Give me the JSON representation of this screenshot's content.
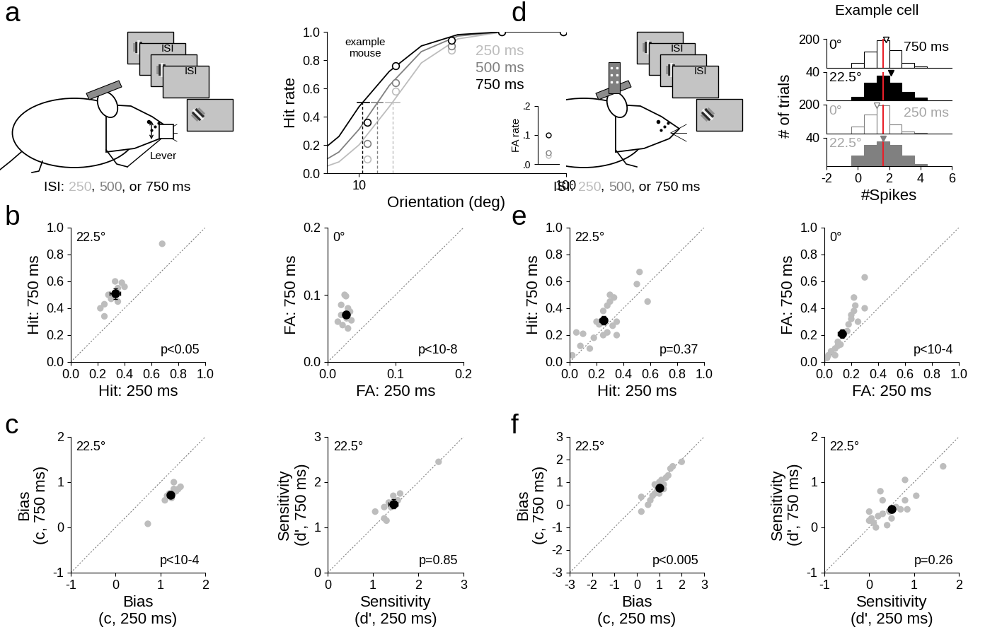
{
  "panel_letters": [
    "a",
    "b",
    "c",
    "d",
    "e",
    "f"
  ],
  "schematics": [
    {
      "isi_labels": [
        "ISI",
        "ISI"
      ],
      "caption": [
        {
          "text": "ISI: ",
          "color": "black"
        },
        {
          "text": "250",
          "color": "#bdbdbd"
        },
        {
          "text": ", ",
          "color": "black"
        },
        {
          "text": "500",
          "color": "#808080"
        },
        {
          "text": ", or ",
          "color": "black"
        },
        {
          "text": "750",
          "color": "black"
        },
        {
          "text": " ms",
          "color": "black"
        }
      ],
      "device_label": "Lever"
    },
    {
      "isi_labels": [
        "ISI",
        "ISI"
      ],
      "caption": [
        {
          "text": "ISI: ",
          "color": "black"
        },
        {
          "text": "250",
          "color": "#bdbdbd"
        },
        {
          "text": ", ",
          "color": "black"
        },
        {
          "text": "500",
          "color": "#808080"
        },
        {
          "text": ", or ",
          "color": "black"
        },
        {
          "text": "750",
          "color": "black"
        },
        {
          "text": " ms",
          "color": "black"
        }
      ]
    }
  ],
  "chart_data": [
    {
      "type": "line",
      "log": "x",
      "x_label": "Orientation (deg)",
      "y_label": "Hit rate",
      "annotation": "example\nmouse",
      "xlim": [
        7,
        100
      ],
      "xticks": [
        10,
        100
      ],
      "ylim": [
        0,
        1
      ],
      "yticks": [
        {
          "value": 0,
          "label": "0.0"
        },
        0.2,
        0.4,
        0.6,
        0.8,
        {
          "value": 1,
          "label": "1.0"
        }
      ],
      "threshold_level": 0.5,
      "series": [
        {
          "name": "250 ms",
          "color": "#bdbdbd",
          "marker": "o",
          "x": [
            11,
            15,
            28,
            49,
            97
          ],
          "values": [
            0.1,
            0.58,
            0.87,
            1.0,
            1.0
          ],
          "fit_x": [
            7,
            8,
            10,
            14,
            20,
            30,
            50,
            100
          ],
          "fit_values": [
            0.05,
            0.08,
            0.2,
            0.47,
            0.78,
            0.95,
            1.0,
            1.0
          ],
          "threshold": 14.5,
          "threshold_ci": [
            13.5,
            15.8
          ]
        },
        {
          "name": "500 ms",
          "color": "#808080",
          "marker": "o",
          "x": [
            11,
            15,
            28,
            49,
            97
          ],
          "values": [
            0.21,
            0.64,
            0.9,
            1.0,
            1.0
          ],
          "fit_x": [
            7,
            8,
            10,
            14,
            20,
            30,
            50,
            100
          ],
          "fit_values": [
            0.1,
            0.15,
            0.31,
            0.62,
            0.86,
            0.97,
            1.0,
            1.0
          ],
          "threshold": 12.2,
          "threshold_ci": [
            11.5,
            13.0
          ]
        },
        {
          "name": "750 ms",
          "color": "#000000",
          "marker": "o",
          "x": [
            11,
            15,
            28,
            49,
            97
          ],
          "values": [
            0.36,
            0.76,
            0.94,
            1.0,
            1.0
          ],
          "fit_x": [
            7,
            8,
            10,
            14,
            20,
            30,
            50,
            100
          ],
          "fit_values": [
            0.19,
            0.26,
            0.47,
            0.72,
            0.9,
            0.98,
            1.0,
            1.0
          ],
          "threshold": 10.4,
          "threshold_ci": [
            9.8,
            11.2
          ]
        }
      ],
      "inset": {
        "y_label": "FA rate",
        "ylim": [
          0,
          0.2
        ],
        "yticks": [
          {
            "value": 0,
            "label": ".0"
          },
          {
            "value": 0.1,
            "label": ".1"
          },
          {
            "value": 0.2,
            "label": ".2"
          }
        ],
        "values": [
          0.03,
          0.04,
          0.1
        ]
      }
    },
    {
      "type": "histogram",
      "title": "Example cell",
      "x_label": "#Spikes",
      "y_label": "# of trials",
      "xlim": [
        -2,
        6
      ],
      "xticks": [
        -2,
        0,
        2,
        4,
        6
      ],
      "criterion": 1.6,
      "criterion_color": "#e8202a",
      "panels": [
        {
          "label": "0°",
          "duration": "750 ms",
          "label_color": "#000000",
          "ylim": [
            0,
            200
          ],
          "yticks": [
            200
          ],
          "bins": [
            -0.4,
            0.4,
            1.2,
            2.0,
            2.8,
            3.6,
            4.4
          ],
          "counts": [
            30,
            110,
            190,
            120,
            30,
            5
          ],
          "color": "#ffffff",
          "edge_color": "#000000",
          "mean": 1.8,
          "mean_filled": false
        },
        {
          "label": "22.5°",
          "label_color": "#000000",
          "ylim": [
            0,
            40
          ],
          "yticks": [
            40
          ],
          "bins": [
            -0.4,
            0.4,
            1.2,
            2.0,
            2.8,
            3.6,
            4.4
          ],
          "counts": [
            5,
            25,
            35,
            25,
            12,
            4
          ],
          "color": "#000000",
          "edge_color": "#000000",
          "mean": 2.1,
          "mean_filled": true
        },
        {
          "label": "0°",
          "duration": "250 ms",
          "label_color": "#a6a6a6",
          "ylim": [
            0,
            200
          ],
          "yticks": [
            200
          ],
          "bins": [
            -0.4,
            0.4,
            1.2,
            2.0,
            2.8,
            3.6,
            4.4
          ],
          "counts": [
            45,
            130,
            195,
            60,
            10,
            2
          ],
          "color": "#ffffff",
          "edge_color": "#808080",
          "mean": 1.2,
          "mean_filled": false
        },
        {
          "label": "22.5°",
          "label_color": "#a6a6a6",
          "ylim": [
            0,
            40
          ],
          "yticks": [
            40
          ],
          "bins": [
            -0.4,
            0.4,
            1.2,
            2.0,
            2.8,
            3.6,
            4.4
          ],
          "counts": [
            15,
            30,
            35,
            30,
            15,
            3
          ],
          "color": "#808080",
          "edge_color": "#808080",
          "mean": 1.6,
          "mean_filled": true
        }
      ]
    },
    {
      "type": "scatter",
      "condition": "22.5°",
      "p_value": "p<0.05",
      "x_label": "Hit: 250 ms",
      "y_label": "Hit: 750 ms",
      "xlim": [
        0,
        1
      ],
      "ylim": [
        0,
        1
      ],
      "xticks": [
        {
          "value": 0,
          "label": "0.0"
        },
        0.2,
        0.4,
        0.6,
        0.8,
        {
          "value": 1,
          "label": "1.0"
        }
      ],
      "yticks": [
        {
          "value": 0,
          "label": "0.0"
        },
        0.2,
        0.4,
        0.6,
        0.8,
        {
          "value": 1,
          "label": "1.0"
        }
      ],
      "color": "#bdbdbd",
      "points": {
        "x": [
          0.68,
          0.35,
          0.38,
          0.33,
          0.22,
          0.25,
          0.3,
          0.28,
          0.25,
          0.32,
          0.35,
          0.4
        ],
        "y": [
          0.88,
          0.55,
          0.59,
          0.6,
          0.4,
          0.43,
          0.47,
          0.5,
          0.34,
          0.5,
          0.45,
          0.56
        ]
      },
      "mean": {
        "x": 0.33,
        "y": 0.51,
        "x_err": 0.04,
        "y_err": 0.04,
        "color": "#000000"
      }
    },
    {
      "type": "scatter",
      "condition": "0°",
      "p_value": "p<10-8",
      "x_label": "FA: 250 ms",
      "y_label": "FA: 750 ms",
      "xlim": [
        0,
        0.2
      ],
      "ylim": [
        0,
        0.2
      ],
      "xticks": [
        {
          "value": 0,
          "label": "0.0"
        },
        0.1,
        0.2
      ],
      "yticks": [
        {
          "value": 0,
          "label": "0.0"
        },
        0.1,
        0.2
      ],
      "color": "#bdbdbd",
      "points": {
        "x": [
          0.025,
          0.027,
          0.02,
          0.03,
          0.033,
          0.015,
          0.028,
          0.022,
          0.03,
          0.035,
          0.02
        ],
        "y": [
          0.1,
          0.098,
          0.085,
          0.08,
          0.075,
          0.06,
          0.065,
          0.055,
          0.05,
          0.062,
          0.07
        ]
      },
      "mean": {
        "x": 0.027,
        "y": 0.071,
        "x_err": 0.003,
        "y_err": 0.005,
        "color": "#000000"
      }
    },
    {
      "type": "scatter",
      "condition": "22.5°",
      "p_value": "p<10-4",
      "x_label": "Bias\n(c, 250 ms)",
      "y_label": "Bias\n(c, 750 ms)",
      "xlim": [
        -1,
        2
      ],
      "ylim": [
        -1,
        2
      ],
      "xticks": [
        -1,
        0,
        1,
        2
      ],
      "yticks": [
        -1,
        0,
        1,
        2
      ],
      "color": "#bdbdbd",
      "points": {
        "x": [
          0.72,
          1.1,
          1.2,
          1.25,
          1.3,
          1.3,
          1.45,
          1.35,
          1.15,
          1.25,
          1.4
        ],
        "y": [
          0.08,
          0.6,
          0.75,
          0.7,
          0.85,
          1.0,
          0.9,
          0.8,
          0.7,
          0.65,
          0.85
        ]
      },
      "mean": {
        "x": 1.22,
        "y": 0.72,
        "x_err": 0.06,
        "y_err": 0.07,
        "color": "#000000"
      }
    },
    {
      "type": "scatter",
      "condition": "22.5°",
      "p_value": "p=0.85",
      "x_label": "Sensitivity\n(d', 250 ms)",
      "y_label": "Sensitivity\n(d', 750 ms)",
      "xlim": [
        0,
        3
      ],
      "ylim": [
        0,
        3
      ],
      "xticks": [
        0,
        1,
        2,
        3
      ],
      "yticks": [
        0,
        1,
        2,
        3
      ],
      "color": "#bdbdbd",
      "points": {
        "x": [
          2.45,
          1.05,
          1.25,
          1.35,
          1.45,
          1.55,
          1.6,
          1.25,
          1.3,
          1.4,
          1.5
        ],
        "y": [
          2.45,
          1.35,
          1.45,
          1.55,
          1.7,
          1.6,
          1.75,
          1.2,
          1.15,
          1.45,
          1.5
        ]
      },
      "mean": {
        "x": 1.45,
        "y": 1.52,
        "x_err": 0.1,
        "y_err": 0.1,
        "color": "#000000"
      }
    },
    {
      "type": "scatter",
      "condition": "22.5°",
      "p_value": "p=0.37",
      "x_label": "Hit: 250 ms",
      "y_label": "Hit: 750 ms",
      "xlim": [
        0,
        1
      ],
      "ylim": [
        0,
        1
      ],
      "xticks": [
        {
          "value": 0,
          "label": "0.0"
        },
        0.2,
        0.4,
        0.6,
        0.8,
        {
          "value": 1,
          "label": "1.0"
        }
      ],
      "yticks": [
        {
          "value": 0,
          "label": "0.0"
        },
        0.2,
        0.4,
        0.6,
        0.8,
        {
          "value": 1,
          "label": "1.0"
        }
      ],
      "color": "#bdbdbd",
      "points": {
        "x": [
          0.02,
          0.05,
          0.1,
          0.08,
          0.15,
          0.18,
          0.2,
          0.22,
          0.25,
          0.28,
          0.3,
          0.3,
          0.33,
          0.28,
          0.35,
          0.25,
          0.5,
          0.52,
          0.58,
          0.32,
          0.35
        ],
        "y": [
          0.05,
          0.22,
          0.21,
          0.12,
          0.1,
          0.18,
          0.3,
          0.28,
          0.38,
          0.22,
          0.45,
          0.5,
          0.48,
          0.42,
          0.2,
          0.2,
          0.58,
          0.67,
          0.45,
          0.27,
          0.3
        ]
      },
      "mean": {
        "x": 0.25,
        "y": 0.31,
        "x_err": 0.03,
        "y_err": 0.03,
        "color": "#000000"
      }
    },
    {
      "type": "scatter",
      "condition": "0°",
      "p_value": "p<10-4",
      "x_label": "FA: 250 ms",
      "y_label": "FA: 750 ms",
      "xlim": [
        0,
        1
      ],
      "ylim": [
        0,
        1
      ],
      "xticks": [
        {
          "value": 0,
          "label": "0.0"
        },
        0.2,
        0.4,
        0.6,
        0.8,
        {
          "value": 1,
          "label": "1.0"
        }
      ],
      "yticks": [
        {
          "value": 0,
          "label": "0.0"
        },
        0.2,
        0.4,
        0.6,
        0.8,
        {
          "value": 1,
          "label": "1.0"
        }
      ],
      "color": "#bdbdbd",
      "points": {
        "x": [
          0.02,
          0.03,
          0.05,
          0.08,
          0.1,
          0.12,
          0.15,
          0.18,
          0.2,
          0.2,
          0.22,
          0.22,
          0.25,
          0.3,
          0.3,
          0.1,
          0.08,
          0.17,
          0.23
        ],
        "y": [
          0.03,
          0.05,
          0.08,
          0.1,
          0.15,
          0.13,
          0.22,
          0.28,
          0.32,
          0.35,
          0.38,
          0.48,
          0.3,
          0.4,
          0.63,
          0.12,
          0.05,
          0.23,
          0.42
        ]
      },
      "mean": {
        "x": 0.13,
        "y": 0.21,
        "x_err": 0.03,
        "y_err": 0.03,
        "color": "#000000"
      }
    },
    {
      "type": "scatter",
      "condition": "22.5°",
      "p_value": "p<0.005",
      "x_label": "Bias\n(c, 250 ms)",
      "y_label": "Bias\n(c, 750 ms)",
      "xlim": [
        -3,
        3
      ],
      "ylim": [
        -3,
        3
      ],
      "xticks": [
        -3,
        -2,
        -1,
        0,
        1,
        2,
        3
      ],
      "yticks": [
        -3,
        -2,
        -1,
        0,
        1,
        2,
        3
      ],
      "color": "#bdbdbd",
      "points": {
        "x": [
          0.2,
          0.2,
          0.5,
          0.6,
          0.7,
          0.8,
          0.9,
          1.0,
          1.1,
          0.9,
          1.2,
          1.3,
          1.5,
          1.6,
          2.0,
          1.4,
          0.8,
          1.2,
          1.0
        ],
        "y": [
          0.35,
          -0.3,
          0.0,
          0.2,
          0.4,
          0.5,
          0.8,
          1.0,
          1.1,
          0.6,
          0.9,
          1.2,
          1.6,
          1.7,
          1.9,
          1.3,
          0.9,
          0.7,
          0.5
        ]
      },
      "mean": {
        "x": 1.0,
        "y": 0.75,
        "x_err": 0.12,
        "y_err": 0.12,
        "color": "#000000"
      }
    },
    {
      "type": "scatter",
      "condition": "22.5°",
      "p_value": "p=0.26",
      "x_label": "Sensitivity\n(d', 250 ms)",
      "y_label": "Sensitivity\n(d', 750 ms)",
      "xlim": [
        -1,
        2
      ],
      "ylim": [
        -1,
        2
      ],
      "xticks": [
        -1,
        0,
        1,
        2
      ],
      "yticks": [
        -1,
        0,
        1,
        2
      ],
      "color": "#bdbdbd",
      "points": {
        "x": [
          0.0,
          0.05,
          0.1,
          0.15,
          0.2,
          0.3,
          0.25,
          0.3,
          0.4,
          0.5,
          0.6,
          0.8,
          0.8,
          0.85,
          1.05,
          1.65,
          0.0,
          0.7,
          0.45
        ],
        "y": [
          0.35,
          0.2,
          0.1,
          0.0,
          0.25,
          0.3,
          0.8,
          0.6,
          0.05,
          0.2,
          0.45,
          1.05,
          0.6,
          0.4,
          0.7,
          1.35,
          0.15,
          0.4,
          0.35
        ]
      },
      "mean": {
        "x": 0.5,
        "y": 0.4,
        "x_err": 0.07,
        "y_err": 0.07,
        "color": "#000000"
      }
    }
  ]
}
